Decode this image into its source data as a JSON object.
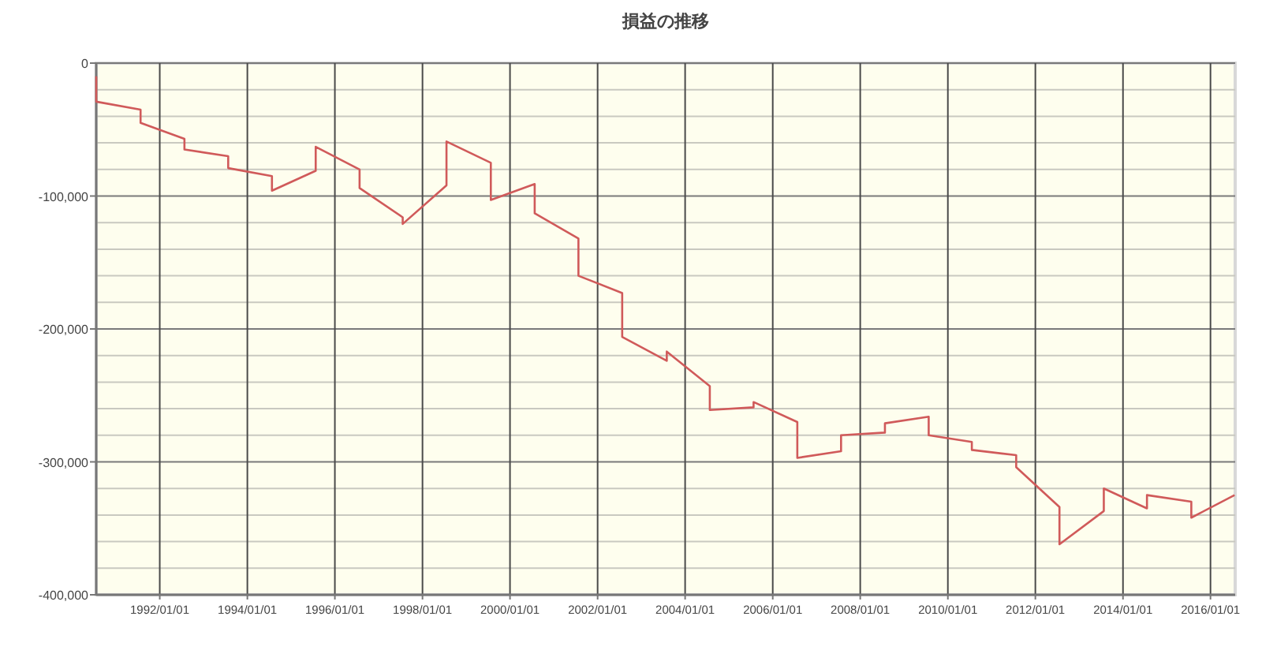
{
  "chart_data": {
    "type": "line",
    "title": "損益の推移",
    "x": [
      "1990-07-20",
      "1990-07-20",
      "1991-07-25",
      "1991-07-25",
      "1992-07-25",
      "1992-07-25",
      "1993-07-25",
      "1993-07-25",
      "1994-07-25",
      "1994-07-25",
      "1995-07-25",
      "1995-07-25",
      "1996-07-25",
      "1996-07-25",
      "1997-07-20",
      "1997-07-20",
      "1998-07-20",
      "1998-07-20",
      "1999-07-25",
      "1999-07-25",
      "2000-07-25",
      "2000-07-25",
      "2001-07-25",
      "2001-07-25",
      "2002-07-25",
      "2002-07-25",
      "2003-08-01",
      "2003-08-01",
      "2004-07-25",
      "2004-07-25",
      "2005-07-25",
      "2005-07-25",
      "2006-07-25",
      "2006-07-25",
      "2007-07-25",
      "2007-07-25",
      "2008-07-25",
      "2008-07-25",
      "2009-07-25",
      "2009-07-25",
      "2010-07-20",
      "2010-07-20",
      "2011-07-25",
      "2011-07-25",
      "2012-07-20",
      "2012-07-20",
      "2013-07-25",
      "2013-07-25",
      "2014-07-20",
      "2014-07-20",
      "2015-07-25",
      "2015-07-25",
      "2016-07-20"
    ],
    "series": [
      {
        "color": "#d05a5a",
        "values": [
          -10000,
          -29000,
          -35000,
          -45000,
          -57000,
          -65000,
          -70000,
          -79000,
          -85000,
          -96000,
          -81000,
          -63000,
          -80000,
          -94000,
          -116000,
          -121000,
          -92000,
          -59000,
          -75000,
          -103000,
          -91000,
          -113000,
          -132000,
          -160000,
          -173000,
          -206000,
          -224000,
          -217000,
          -243000,
          -261000,
          -259000,
          -255000,
          -270000,
          -297000,
          -292000,
          -280000,
          -278000,
          -271000,
          -266000,
          -280000,
          -285000,
          -291000,
          -295000,
          -304000,
          -334000,
          -362000,
          -337000,
          -320000,
          -335000,
          -325000,
          -330000,
          -342000,
          -325000
        ]
      }
    ],
    "xlim": [
      "1990-07-20",
      "2016-07-25"
    ],
    "xticks": [
      {
        "value": "1992-01-01",
        "label": "1992/01/01"
      },
      {
        "value": "1994-01-01",
        "label": "1994/01/01"
      },
      {
        "value": "1996-01-01",
        "label": "1996/01/01"
      },
      {
        "value": "1998-01-01",
        "label": "1998/01/01"
      },
      {
        "value": "2000-01-01",
        "label": "2000/01/01"
      },
      {
        "value": "2002-01-01",
        "label": "2002/01/01"
      },
      {
        "value": "2004-01-01",
        "label": "2004/01/01"
      },
      {
        "value": "2006-01-01",
        "label": "2006/01/01"
      },
      {
        "value": "2008-01-01",
        "label": "2008/01/01"
      },
      {
        "value": "2010-01-01",
        "label": "2010/01/01"
      },
      {
        "value": "2012-01-01",
        "label": "2012/01/01"
      },
      {
        "value": "2014-01-01",
        "label": "2014/01/01"
      },
      {
        "value": "2016-01-01",
        "label": "2016/01/01"
      }
    ],
    "ylim": [
      -400000,
      0
    ],
    "yticks": [
      0,
      {
        "value": -20000,
        "label": null
      },
      {
        "value": -40000,
        "label": null
      },
      {
        "value": -60000,
        "label": null
      },
      {
        "value": -80000,
        "label": null
      },
      {
        "value": -100000,
        "label": "-100,000"
      },
      {
        "value": -120000,
        "label": null
      },
      {
        "value": -140000,
        "label": null
      },
      {
        "value": -160000,
        "label": null
      },
      {
        "value": -180000,
        "label": null
      },
      {
        "value": -200000,
        "label": "-200,000"
      },
      {
        "value": -220000,
        "label": null
      },
      {
        "value": -240000,
        "label": null
      },
      {
        "value": -260000,
        "label": null
      },
      {
        "value": -280000,
        "label": null
      },
      {
        "value": -300000,
        "label": "-300,000"
      },
      {
        "value": -320000,
        "label": null
      },
      {
        "value": -340000,
        "label": null
      },
      {
        "value": -360000,
        "label": null
      },
      {
        "value": -380000,
        "label": null
      },
      {
        "value": -400000,
        "label": "-400,000"
      }
    ],
    "grid": true
  }
}
